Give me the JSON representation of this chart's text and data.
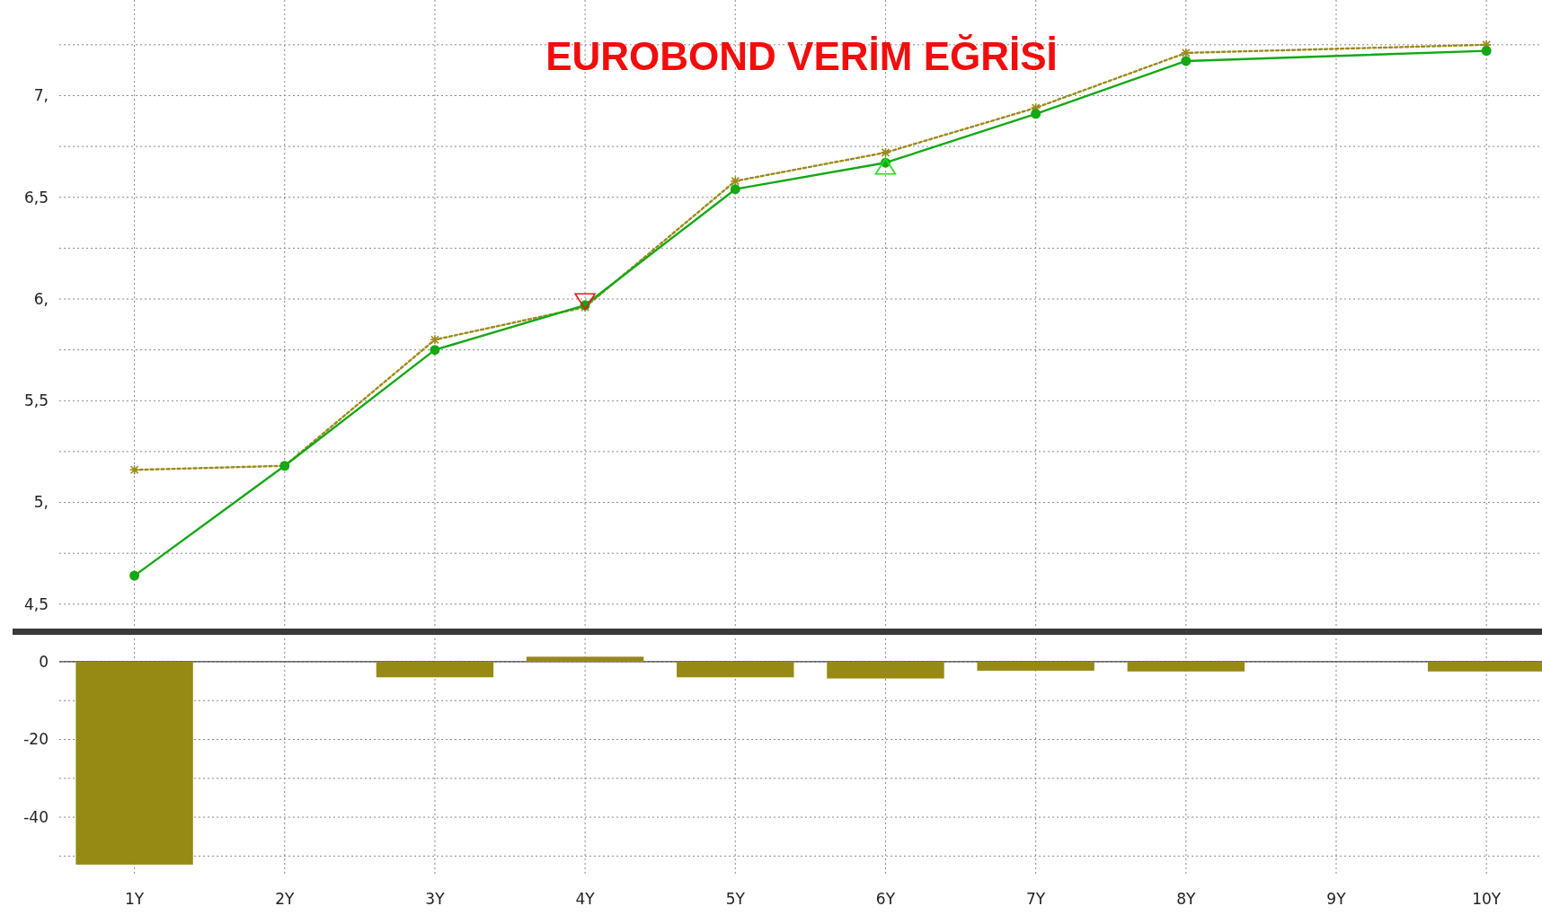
{
  "chart_data": [
    {
      "type": "line",
      "title": "EUROBOND VERİM EĞRİSİ",
      "xlim": [
        0.5,
        10.37
      ],
      "xticks": [
        {
          "value": 1,
          "label": null
        },
        {
          "value": 2,
          "label": null
        },
        {
          "value": 3,
          "label": null
        },
        {
          "value": 4,
          "label": null
        },
        {
          "value": 5,
          "label": null
        },
        {
          "value": 6,
          "label": null
        },
        {
          "value": 7,
          "label": null
        },
        {
          "value": 8,
          "label": null
        },
        {
          "value": 9,
          "label": null
        },
        {
          "value": 10,
          "label": null
        }
      ],
      "ylim": [
        4.38,
        7.47
      ],
      "yticks": [
        {
          "value": 4.5,
          "label": "4,5"
        },
        {
          "value": 4.75,
          "label": null
        },
        {
          "value": 5,
          "label": "5,"
        },
        {
          "value": 5.25,
          "label": null
        },
        {
          "value": 5.5,
          "label": "5,5"
        },
        {
          "value": 5.75,
          "label": null
        },
        {
          "value": 6,
          "label": "6,"
        },
        {
          "value": 6.25,
          "label": null
        },
        {
          "value": 6.5,
          "label": "6,5"
        },
        {
          "value": 6.75,
          "label": null
        },
        {
          "value": 7,
          "label": "7,"
        },
        {
          "value": 7.25,
          "label": null
        }
      ],
      "tick_labels": "y",
      "grid": true,
      "series": [
        {
          "color": "#9c8a1c",
          "marker": "cross",
          "line_style": "dotted",
          "x": [
            1,
            2,
            3,
            4,
            5,
            6,
            7,
            8,
            10
          ],
          "values": [
            5.16,
            5.18,
            5.8,
            5.96,
            6.58,
            6.72,
            6.94,
            7.21,
            7.25
          ]
        },
        {
          "color": "#14a814",
          "marker": "circle",
          "line_style": "solid",
          "x": [
            1,
            2,
            3,
            4,
            5,
            6,
            7,
            8,
            10
          ],
          "values": [
            4.64,
            5.18,
            5.75,
            5.97,
            6.54,
            6.67,
            6.91,
            7.17,
            7.22
          ]
        },
        {
          "type": "scatter",
          "color": "#e8191f",
          "marker": "triangle-down",
          "x": [
            4
          ],
          "values": [
            5.99
          ]
        },
        {
          "type": "scatter",
          "color": "#1ee01e",
          "marker": "triangle",
          "x": [
            6
          ],
          "values": [
            6.65
          ]
        }
      ]
    },
    {
      "type": "bar",
      "x": [
        1,
        2,
        3,
        4,
        5,
        6,
        7,
        8,
        9,
        10
      ],
      "xlim": [
        0.5,
        10.37
      ],
      "xticks": [
        {
          "value": 1,
          "label": "1Y"
        },
        {
          "value": 2,
          "label": "2Y"
        },
        {
          "value": 3,
          "label": "3Y"
        },
        {
          "value": 4,
          "label": "4Y"
        },
        {
          "value": 5,
          "label": "5Y"
        },
        {
          "value": 6,
          "label": "6Y"
        },
        {
          "value": 7,
          "label": "7Y"
        },
        {
          "value": 8,
          "label": "8Y"
        },
        {
          "value": 9,
          "label": "9Y"
        },
        {
          "value": 10,
          "label": "10Y"
        }
      ],
      "ylim": [
        -55,
        6
      ],
      "yticks": [
        {
          "value": -50,
          "label": null
        },
        {
          "value": -40,
          "label": "-40"
        },
        {
          "value": -30,
          "label": null
        },
        {
          "value": -20,
          "label": "-20"
        },
        {
          "value": -10,
          "label": null
        },
        0
      ],
      "grid": true,
      "ref_lines": [
        {
          "axis": "y",
          "value": 0,
          "color": "#444444",
          "line_style": "solid"
        }
      ],
      "series": [
        {
          "color": "#968a14",
          "values": [
            -52.2,
            0,
            -4,
            1.3,
            -4,
            -4.3,
            -2.3,
            -2.5,
            0,
            -2.5
          ]
        }
      ]
    }
  ]
}
